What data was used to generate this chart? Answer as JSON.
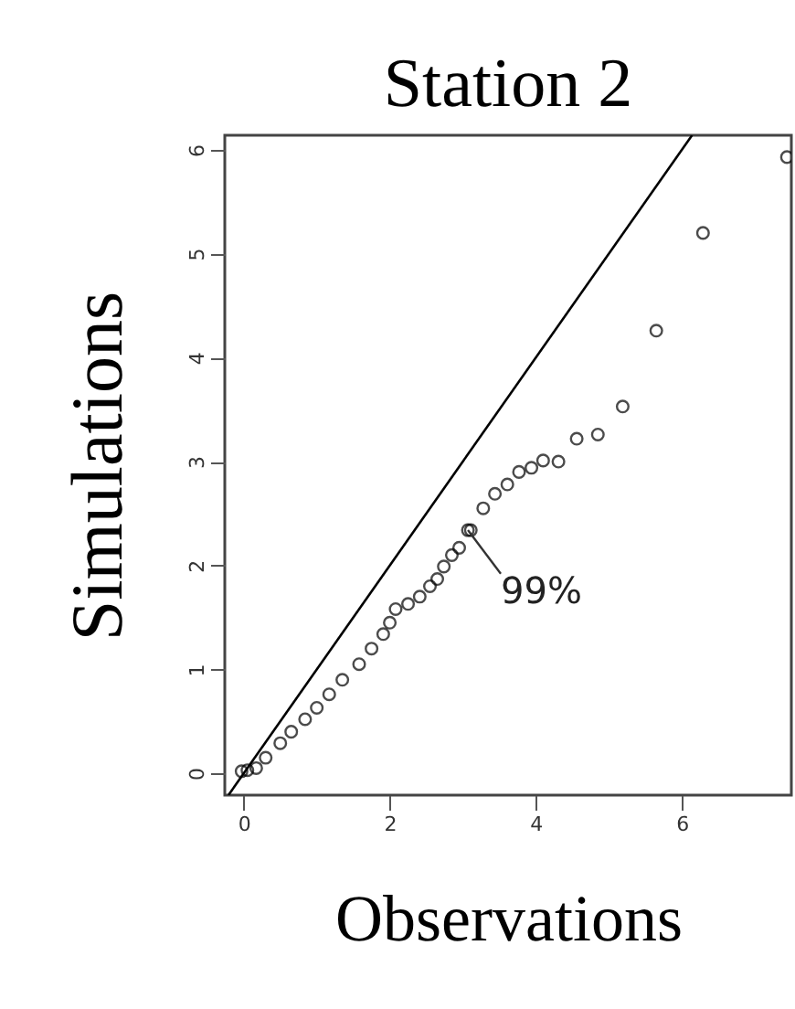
{
  "chart_data": {
    "type": "scatter",
    "title": "Station 2",
    "xlabel": "Observations",
    "ylabel": "Simulations",
    "xlim": [
      -0.26,
      7.5
    ],
    "ylim": [
      -0.21,
      6.14
    ],
    "xticks": [
      0,
      2,
      4,
      6
    ],
    "yticks": [
      0,
      1,
      2,
      3,
      4,
      5,
      6
    ],
    "grid": false,
    "annotations": [
      {
        "text": "99%",
        "x": 3.07,
        "y": 2.34
      }
    ],
    "series": [
      {
        "color": "#000000",
        "marker": "circle",
        "x": [
          -0.03,
          0.05,
          0.17,
          0.3,
          0.5,
          0.65,
          0.84,
          1.0,
          1.17,
          1.35,
          1.58,
          1.75,
          1.91,
          2.0,
          2.08,
          2.25,
          2.41,
          2.55,
          2.65,
          2.74,
          2.85,
          2.95,
          3.07,
          3.11,
          3.28,
          3.44,
          3.61,
          3.77,
          3.94,
          4.1,
          4.31,
          4.56,
          4.85,
          5.19,
          5.65,
          6.29,
          7.44
        ],
        "values": [
          0.02,
          0.03,
          0.05,
          0.15,
          0.29,
          0.4,
          0.52,
          0.63,
          0.76,
          0.9,
          1.05,
          1.2,
          1.34,
          1.45,
          1.58,
          1.63,
          1.7,
          1.8,
          1.87,
          1.99,
          2.1,
          2.17,
          2.34,
          2.34,
          2.55,
          2.69,
          2.78,
          2.9,
          2.94,
          3.01,
          3.0,
          3.22,
          3.26,
          3.53,
          4.26,
          5.2,
          5.93
        ]
      },
      {
        "type": "line",
        "color": "#000000",
        "line_style": "solid",
        "marker": "none",
        "x": [
          -0.21,
          6.14
        ],
        "values": [
          -0.21,
          6.14
        ]
      }
    ]
  }
}
